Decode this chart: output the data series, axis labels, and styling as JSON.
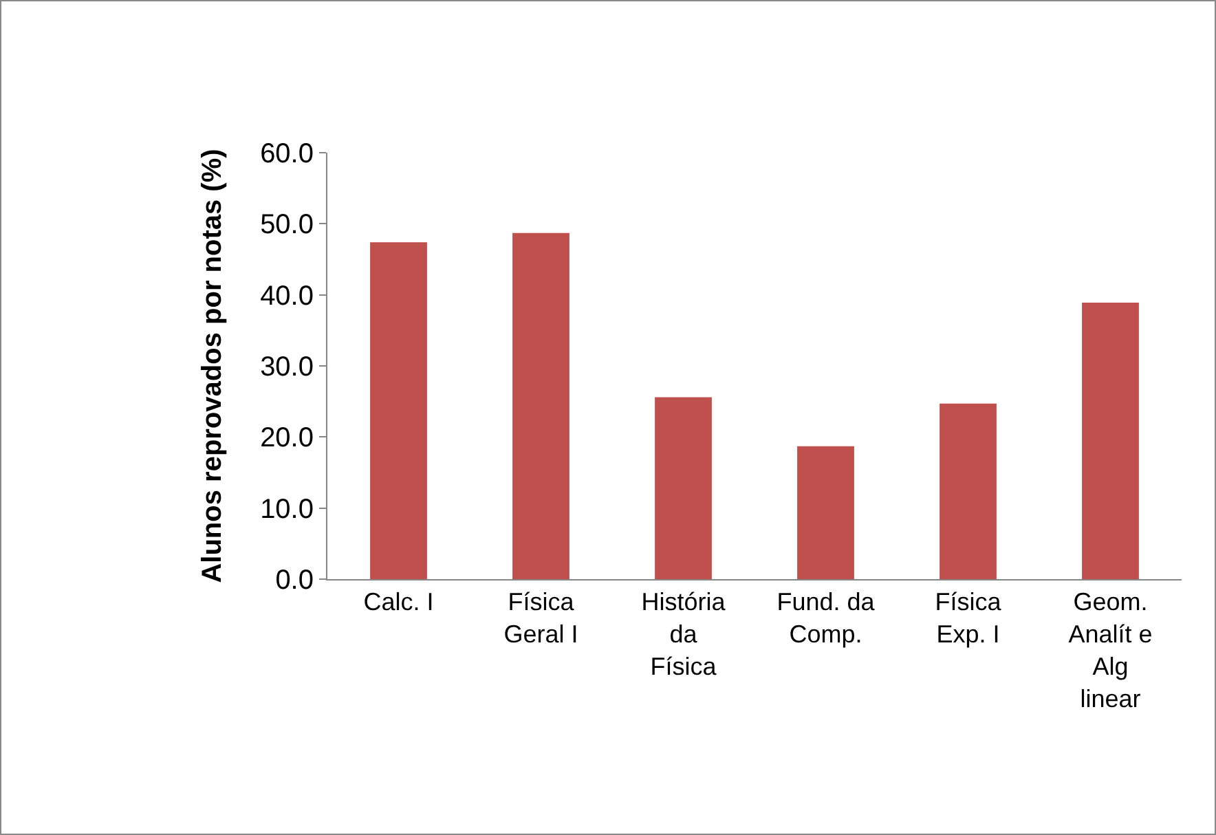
{
  "chart_data": {
    "type": "bar",
    "ylabel": "Alunos reprovados por notas (%)",
    "categories": [
      "Calc. I",
      "Física Geral I",
      "História da Física",
      "Fund. da Comp.",
      "Física Exp. I",
      "Geom. Analít e Alg linear"
    ],
    "values": [
      47.4,
      48.7,
      25.6,
      18.7,
      24.7,
      38.9
    ],
    "color": "#c0504d",
    "ylim": [
      0,
      60
    ],
    "yticks": [
      {
        "value": 0,
        "label": "0.0"
      },
      {
        "value": 10,
        "label": "10.0"
      },
      {
        "value": 20,
        "label": "20.0"
      },
      {
        "value": 30,
        "label": "30.0"
      },
      {
        "value": 40,
        "label": "40.0"
      },
      {
        "value": 50,
        "label": "50.0"
      },
      {
        "value": 60,
        "label": "60.0"
      }
    ],
    "grid": false
  }
}
